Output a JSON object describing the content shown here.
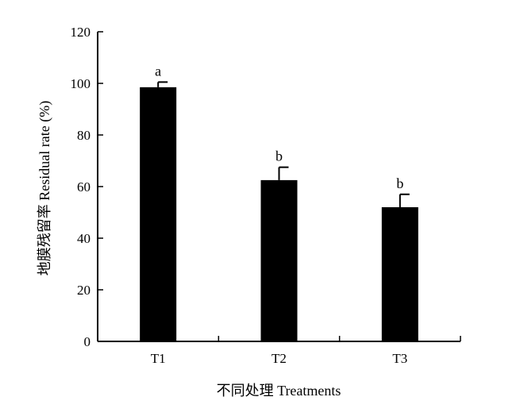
{
  "chart_data": {
    "type": "bar",
    "categories": [
      "T1",
      "T2",
      "T3"
    ],
    "values": [
      98.5,
      62.5,
      52
    ],
    "errors": [
      2,
      5,
      5
    ],
    "significance": [
      "a",
      "b",
      "b"
    ],
    "xlabel": "不同处理 Treatments",
    "ylabel": "地膜残留率 Residual rate (%)",
    "ylim": [
      0,
      120
    ],
    "yticks": [
      0,
      20,
      40,
      60,
      80,
      100,
      120
    ],
    "bar_color": "#000000",
    "grid": false,
    "legend": "none"
  }
}
